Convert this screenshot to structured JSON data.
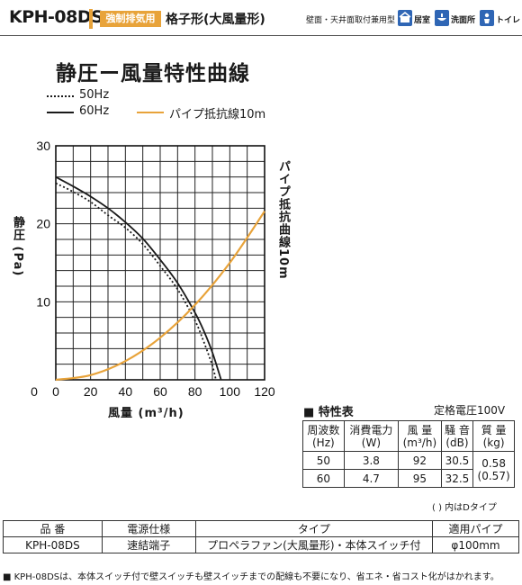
{
  "header": {
    "model": "KPH-08DS",
    "badge": "強制排気用",
    "grille": "格子形(大風量形)",
    "mount": "壁面・天井面取付兼用型",
    "rooms": [
      {
        "icon": "living-room-icon",
        "label": "居室"
      },
      {
        "icon": "washroom-icon",
        "label": "洗面所"
      },
      {
        "icon": "toilet-icon",
        "label": "トイレ"
      }
    ],
    "accent": "#e8a33a",
    "icon_color": "#2f66b5"
  },
  "chart_data": {
    "type": "line",
    "title": "静圧ー風量特性曲線",
    "xlabel": "風量 (m³/h)",
    "ylabel": "静圧 (Pa)",
    "y2label": "パイプ抵抗曲線10m",
    "xlim": [
      0,
      120
    ],
    "ylim": [
      0,
      30
    ],
    "xticks": [
      0,
      20,
      40,
      60,
      80,
      100,
      120
    ],
    "yticks": [
      0,
      10,
      20,
      30
    ],
    "grid": true,
    "series": [
      {
        "name": "50Hz",
        "style": "dotted",
        "color": "#1a1a1a",
        "x": [
          0,
          10,
          20,
          30,
          40,
          50,
          60,
          70,
          80,
          85,
          90,
          92
        ],
        "y": [
          25.2,
          24.1,
          22.8,
          21.1,
          19.5,
          17.4,
          14.6,
          11.6,
          7.6,
          4.9,
          1.8,
          0
        ]
      },
      {
        "name": "60Hz",
        "style": "solid",
        "color": "#1a1a1a",
        "x": [
          0,
          10,
          20,
          30,
          40,
          50,
          60,
          70,
          80,
          85,
          90,
          95
        ],
        "y": [
          26.0,
          24.8,
          23.5,
          22.0,
          20.2,
          18.1,
          15.4,
          12.4,
          8.6,
          6.3,
          3.5,
          0
        ]
      },
      {
        "name": "パイプ抵抗線10m",
        "style": "solid",
        "color": "#e8a33a",
        "x": [
          0,
          20,
          40,
          60,
          80,
          100,
          120
        ],
        "y": [
          0,
          0.6,
          2.4,
          5.4,
          9.6,
          15.0,
          21.6
        ]
      }
    ]
  },
  "spec": {
    "title": "■ 特性表",
    "rated": "定格電圧100V",
    "headers": [
      [
        "周波数",
        "(Hz)"
      ],
      [
        "消費電力",
        "(W)"
      ],
      [
        "風 量",
        "(m³/h)"
      ],
      [
        "騒 音",
        "(dB)"
      ],
      [
        "質 量",
        "(kg)"
      ]
    ],
    "rows": [
      [
        "50",
        "3.8",
        "92",
        "30.5"
      ],
      [
        "60",
        "4.7",
        "95",
        "32.5"
      ]
    ],
    "mass": "0.58",
    "mass_d": "(0.57)",
    "note": "( ) 内はDタイプ"
  },
  "product": {
    "headers": [
      "品 番",
      "電源仕様",
      "タイプ",
      "適用パイプ"
    ],
    "row": [
      "KPH-08DS",
      "速結端子",
      "プロペラファン(大風量形)・本体スイッチ付",
      "φ100mm"
    ]
  },
  "footer": "■ KPH-08DSは、本体スイッチ付で壁スイッチも壁スイッチまでの配線も不要になり、省エネ・省コスト化がはかれます。"
}
